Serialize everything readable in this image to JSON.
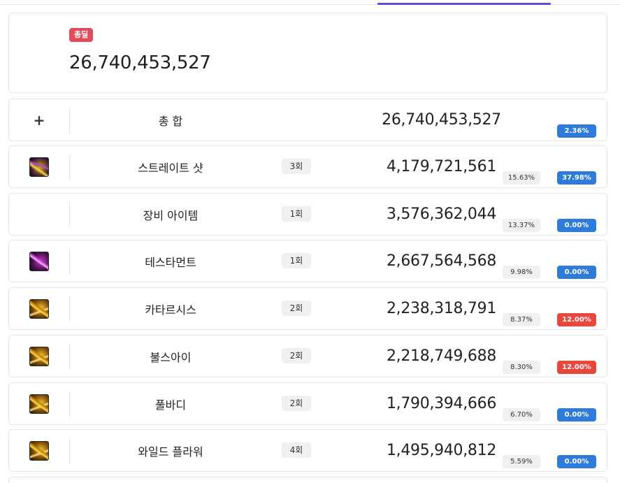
{
  "summary": {
    "badge": "총딜",
    "total": "26,740,453,527"
  },
  "total_row": {
    "icon": "plus-icon",
    "icon_glyph": "+",
    "name": "총 합",
    "value": "26,740,453,527",
    "pct": "2.36%"
  },
  "skills": [
    {
      "icon": "straight-shot-skill-icon",
      "name": "스트레이트 샷",
      "count": "3회",
      "value": "4,179,721,561",
      "share": "15.63%",
      "pct": "37.98%",
      "pct_color": "blue"
    },
    {
      "icon": "",
      "name": "장비 아이템",
      "count": "1회",
      "value": "3,576,362,044",
      "share": "13.37%",
      "pct": "0.00%",
      "pct_color": "blue"
    },
    {
      "icon": "testament-skill-icon",
      "name": "테스타먼트",
      "count": "1회",
      "value": "2,667,564,568",
      "share": "9.98%",
      "pct": "0.00%",
      "pct_color": "blue"
    },
    {
      "icon": "catharsis-skill-icon",
      "name": "카타르시스",
      "count": "2회",
      "value": "2,238,318,791",
      "share": "8.37%",
      "pct": "12.00%",
      "pct_color": "red"
    },
    {
      "icon": "bulls-eye-skill-icon",
      "name": "불스아이",
      "count": "2회",
      "value": "2,218,749,688",
      "share": "8.30%",
      "pct": "12.00%",
      "pct_color": "red"
    },
    {
      "icon": "full-body-skill-icon",
      "name": "풀바디",
      "count": "2회",
      "value": "1,790,394,666",
      "share": "6.70%",
      "pct": "0.00%",
      "pct_color": "blue"
    },
    {
      "icon": "wild-flower-skill-icon",
      "name": "와일드 플라워",
      "count": "4회",
      "value": "1,495,940,812",
      "share": "5.59%",
      "pct": "0.00%",
      "pct_color": "blue"
    }
  ],
  "colors": {
    "accent": "#5b4fd6",
    "badge": "#e24b5b",
    "blue": "#2e7bd9",
    "red": "#e9473c"
  }
}
